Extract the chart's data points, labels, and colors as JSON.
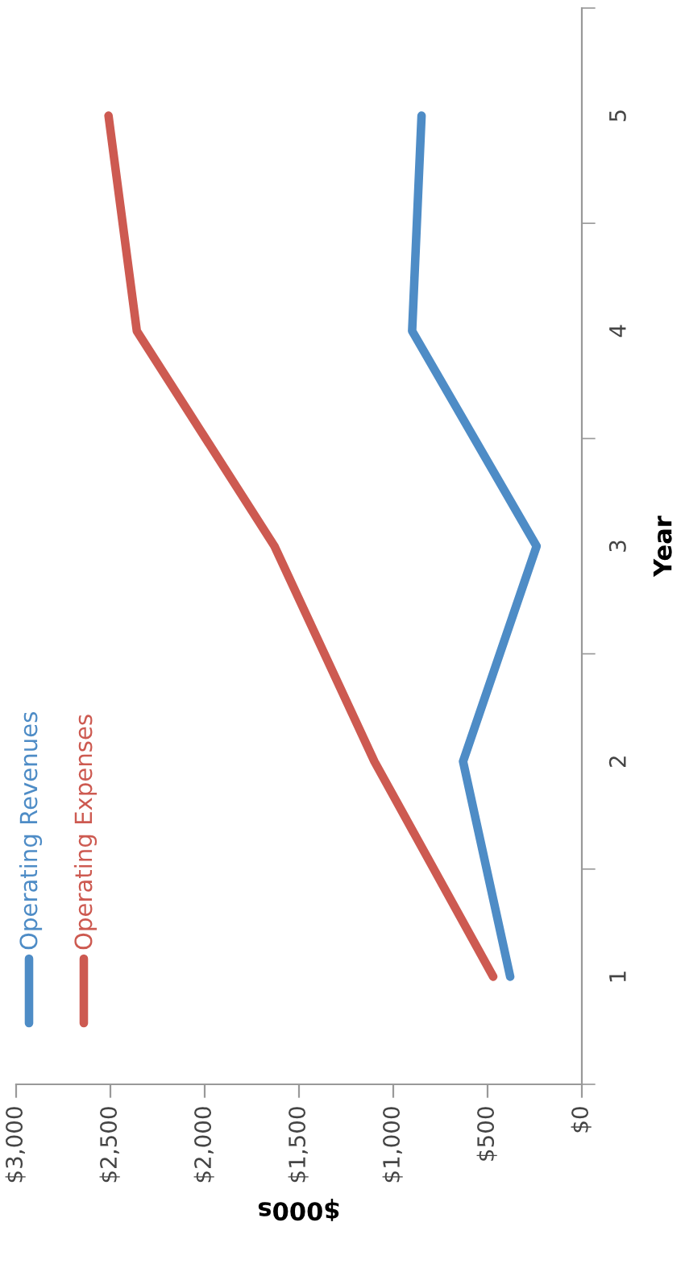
{
  "chart_data": {
    "type": "line",
    "orientation": "horizontal",
    "xlabel": "$000s",
    "ylabel": "Year",
    "categories": [
      "5",
      "4",
      "3",
      "2",
      "1"
    ],
    "series": [
      {
        "name": "Operating Revenues",
        "color": "#4e8cc6",
        "values": [
          850,
          900,
          240,
          630,
          380
        ]
      },
      {
        "name": "Operating Expenses",
        "color": "#cd5a51",
        "values": [
          2510,
          2360,
          1630,
          1100,
          470
        ]
      }
    ],
    "xlim": [
      3000,
      0
    ],
    "xticks": [
      {
        "value": 3000,
        "label": "$3,000"
      },
      {
        "value": 2500,
        "label": "$2,500"
      },
      {
        "value": 2000,
        "label": "$2,000"
      },
      {
        "value": 1500,
        "label": "$1,500"
      },
      {
        "value": 1000,
        "label": "$1,000"
      },
      {
        "value": 500,
        "label": "$500"
      },
      {
        "value": 0,
        "label": "$0"
      }
    ],
    "grid": false,
    "legend": "bottom left",
    "marker": "none",
    "line_style": "solid"
  }
}
